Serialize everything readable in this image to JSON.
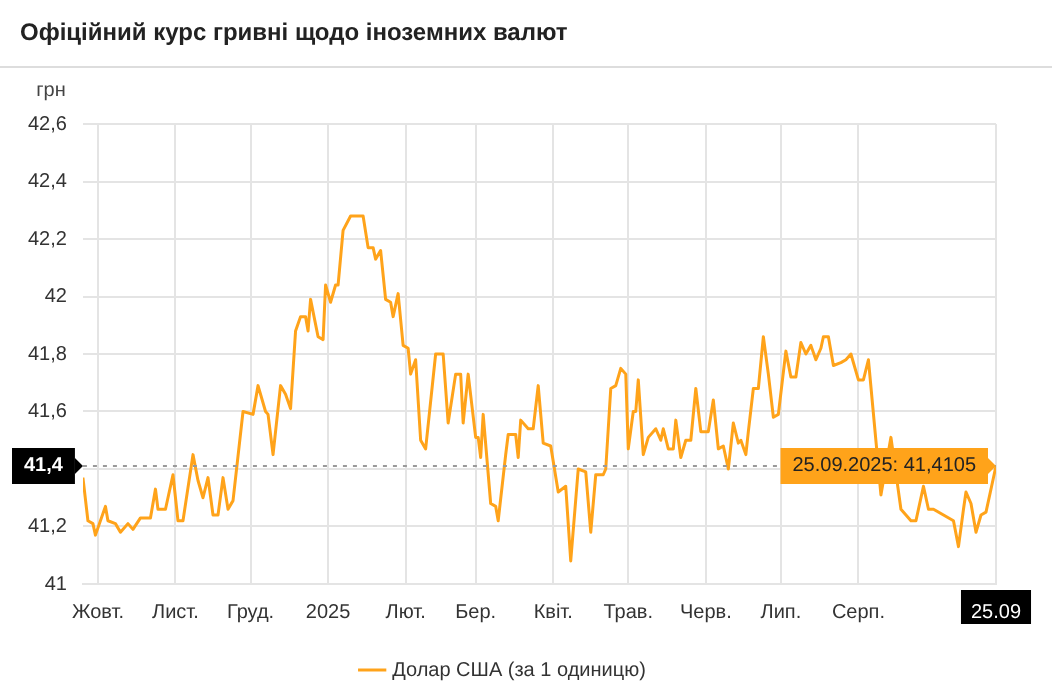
{
  "chart_data": {
    "type": "line",
    "title": "Офіційний курс гривні щодо іноземних валют",
    "ylabel": "грн",
    "x": [
      "2024-09-25",
      "2024-09-27",
      "2024-09-29",
      "2024-09-30",
      "2024-10-04",
      "2024-10-05",
      "2024-10-08",
      "2024-10-10",
      "2024-10-13",
      "2024-10-15",
      "2024-10-18",
      "2024-10-22",
      "2024-10-24",
      "2024-10-25",
      "2024-10-28",
      "2024-10-31",
      "2024-11-02",
      "2024-11-04",
      "2024-11-08",
      "2024-11-10",
      "2024-11-12",
      "2024-11-14",
      "2024-11-16",
      "2024-11-18",
      "2024-11-20",
      "2024-11-22",
      "2024-11-24",
      "2024-11-28",
      "2024-12-02",
      "2024-12-04",
      "2024-12-07",
      "2024-12-08",
      "2024-12-10",
      "2024-12-13",
      "2024-12-15",
      "2024-12-17",
      "2024-12-19",
      "2024-12-21",
      "2024-12-23",
      "2024-12-24",
      "2024-12-25",
      "2024-12-28",
      "2024-12-30",
      "2024-12-31",
      "2025-01-02",
      "2025-01-04",
      "2025-01-05",
      "2025-01-07",
      "2025-01-10",
      "2025-01-15",
      "2025-01-17",
      "2025-01-19",
      "2025-01-20",
      "2025-01-22",
      "2025-01-24",
      "2025-01-26",
      "2025-01-27",
      "2025-01-29",
      "2025-01-31",
      "2025-02-02",
      "2025-02-03",
      "2025-02-05",
      "2025-02-07",
      "2025-02-09",
      "2025-02-13",
      "2025-02-16",
      "2025-02-18",
      "2025-02-21",
      "2025-02-23",
      "2025-02-24",
      "2025-02-26",
      "2025-03-01",
      "2025-03-02",
      "2025-03-03",
      "2025-03-04",
      "2025-03-07",
      "2025-03-09",
      "2025-03-10",
      "2025-03-13",
      "2025-03-14",
      "2025-03-17",
      "2025-03-18",
      "2025-03-19",
      "2025-03-22",
      "2025-03-24",
      "2025-03-26",
      "2025-03-28",
      "2025-03-31",
      "2025-04-03",
      "2025-04-06",
      "2025-04-08",
      "2025-04-11",
      "2025-04-14",
      "2025-04-16",
      "2025-04-18",
      "2025-04-21",
      "2025-04-22",
      "2025-04-24",
      "2025-04-26",
      "2025-04-28",
      "2025-04-30",
      "2025-05-01",
      "2025-05-03",
      "2025-05-04",
      "2025-05-05",
      "2025-05-07",
      "2025-05-09",
      "2025-05-12",
      "2025-05-14",
      "2025-05-15",
      "2025-05-17",
      "2025-05-19",
      "2025-05-20",
      "2025-05-22",
      "2025-05-24",
      "2025-05-26",
      "2025-05-28",
      "2025-05-30",
      "2025-06-02",
      "2025-06-04",
      "2025-06-06",
      "2025-06-08",
      "2025-06-10",
      "2025-06-12",
      "2025-06-14",
      "2025-06-15",
      "2025-06-17",
      "2025-06-18",
      "2025-06-20",
      "2025-06-22",
      "2025-06-24",
      "2025-06-26",
      "2025-06-28",
      "2025-06-30",
      "2025-07-03",
      "2025-07-05",
      "2025-07-07",
      "2025-07-09",
      "2025-07-11",
      "2025-07-13",
      "2025-07-15",
      "2025-07-17",
      "2025-07-18",
      "2025-07-20",
      "2025-07-22",
      "2025-07-25",
      "2025-07-27",
      "2025-07-29",
      "2025-08-01",
      "2025-08-03",
      "2025-08-05",
      "2025-08-08",
      "2025-08-10",
      "2025-08-12",
      "2025-08-14",
      "2025-08-16",
      "2025-08-18",
      "2025-08-19",
      "2025-08-22",
      "2025-08-24",
      "2025-08-26",
      "2025-08-27",
      "2025-08-29",
      "2025-08-31",
      "2025-09-03",
      "2025-09-05",
      "2025-09-07",
      "2025-09-08",
      "2025-09-10",
      "2025-09-12",
      "2025-09-13",
      "2025-09-15",
      "2025-09-17",
      "2025-09-19",
      "2025-09-21",
      "2025-09-23",
      "2025-09-25"
    ],
    "series": [
      {
        "name": "Долар США (за 1 одиницю)",
        "color": "#ffa31a",
        "values": [
          41.37,
          41.22,
          41.21,
          41.17,
          41.27,
          41.22,
          41.21,
          41.18,
          41.21,
          41.19,
          41.23,
          41.23,
          41.33,
          41.26,
          41.26,
          41.38,
          41.22,
          41.22,
          41.45,
          41.36,
          41.3,
          41.37,
          41.24,
          41.24,
          41.37,
          41.26,
          41.29,
          41.6,
          41.59,
          41.69,
          41.6,
          41.59,
          41.45,
          41.69,
          41.66,
          41.61,
          41.88,
          41.93,
          41.93,
          41.88,
          41.99,
          41.86,
          41.85,
          42.04,
          41.98,
          42.04,
          42.04,
          42.23,
          42.28,
          42.28,
          42.17,
          42.17,
          42.13,
          42.16,
          41.99,
          41.98,
          41.93,
          42.01,
          41.83,
          41.82,
          41.73,
          41.78,
          41.5,
          41.47,
          41.8,
          41.8,
          41.56,
          41.73,
          41.73,
          41.56,
          41.73,
          41.51,
          41.51,
          41.44,
          41.59,
          41.28,
          41.27,
          41.22,
          41.45,
          41.52,
          41.52,
          41.44,
          41.57,
          41.54,
          41.54,
          41.69,
          41.49,
          41.48,
          41.32,
          41.34,
          41.08,
          41.4,
          41.39,
          41.18,
          41.38,
          41.38,
          41.4,
          41.68,
          41.69,
          41.75,
          41.73,
          41.47,
          41.6,
          41.6,
          41.71,
          41.45,
          41.51,
          41.54,
          41.5,
          41.54,
          41.47,
          41.47,
          41.57,
          41.44,
          41.5,
          41.5,
          41.68,
          41.53,
          41.53,
          41.64,
          41.47,
          41.48,
          41.4,
          41.56,
          41.49,
          41.5,
          41.45,
          41.53,
          41.68,
          41.68,
          41.86,
          41.73,
          41.58,
          41.59,
          41.81,
          41.72,
          41.72,
          41.84,
          41.8,
          41.83,
          41.78,
          41.82,
          41.86,
          41.86,
          41.76,
          41.77,
          41.78,
          41.8,
          41.71,
          41.71,
          41.78,
          null,
          41.31,
          null,
          41.51,
          null,
          41.26,
          null,
          41.22,
          41.22,
          null,
          41.34,
          41.26,
          41.26,
          null,
          null,
          null,
          41.22,
          41.13,
          41.26,
          41.32,
          41.28,
          41.18,
          41.24,
          41.25,
          null,
          41.4105
        ]
      }
    ],
    "xlim": [
      "2024-09-25",
      "2025-09-25"
    ],
    "xticks": [
      {
        "value": "2024-10-01",
        "label": "Жовт."
      },
      {
        "value": "2024-11-01",
        "label": "Лист."
      },
      {
        "value": "2024-12-01",
        "label": "Груд."
      },
      {
        "value": "2025-01-01",
        "label": "2025"
      },
      {
        "value": "2025-02-01",
        "label": "Лют."
      },
      {
        "value": "2025-03-01",
        "label": "Бер."
      },
      {
        "value": "2025-04-01",
        "label": "Квіт."
      },
      {
        "value": "2025-05-01",
        "label": "Трав."
      },
      {
        "value": "2025-06-01",
        "label": "Черв."
      },
      {
        "value": "2025-07-01",
        "label": "Лип."
      },
      {
        "value": "2025-08-01",
        "label": "Серп."
      },
      {
        "value": "2025-09-25",
        "label": "25.09"
      }
    ],
    "ylim": [
      41,
      42.6
    ],
    "yticks": [
      41,
      {
        "value": 41.2,
        "label": "41,2"
      },
      {
        "value": 41.4,
        "label": null
      },
      {
        "value": 41.6,
        "label": "41,6"
      },
      {
        "value": 41.8,
        "label": "41,8"
      },
      42,
      {
        "value": 42.2,
        "label": "42,2"
      },
      {
        "value": 42.4,
        "label": "42,4"
      },
      {
        "value": 42.6,
        "label": "42,6"
      }
    ],
    "ref_lines": [
      {
        "axis": "y",
        "value": 41.4105,
        "label": "41,4",
        "color": "#999999",
        "line_style": "dotted"
      }
    ],
    "annotations": [
      {
        "text": "25.09.2025: 41,4105",
        "x": "2025-09-25",
        "y": 41.4105
      }
    ],
    "grid": true,
    "legend": "bottom",
    "marker": "none",
    "line_style": "solid"
  }
}
